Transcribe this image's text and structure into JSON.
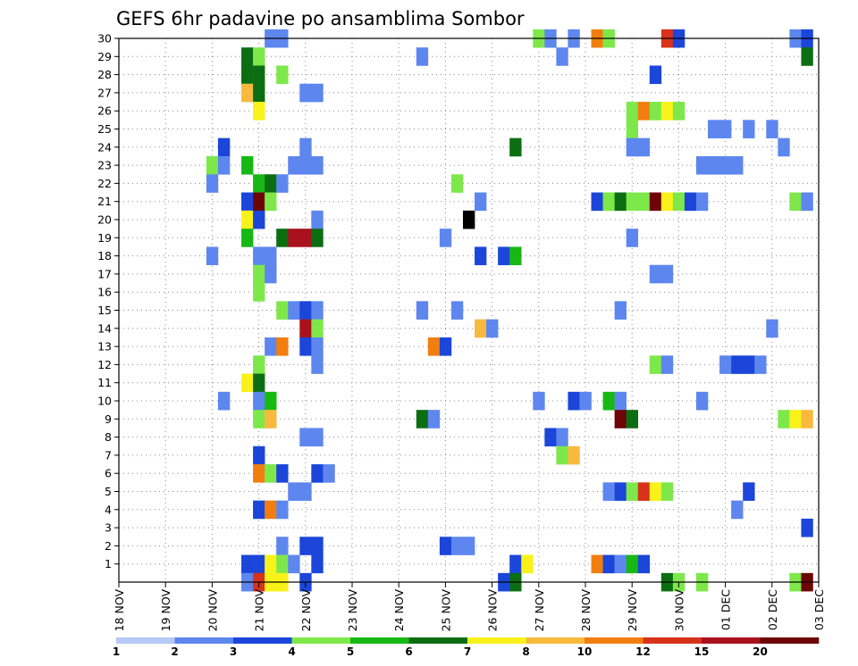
{
  "chart_data": {
    "type": "heatmap",
    "title": "GEFS 6hr padavine po ansamblima Sombor",
    "xlabel": "",
    "ylabel": "",
    "x_tick_labels": [
      "18 NOV",
      "19 NOV",
      "20 NOV",
      "21 NOV",
      "22 NOV",
      "23 NOV",
      "24 NOV",
      "25 NOV",
      "26 NOV",
      "27 NOV",
      "28 NOV",
      "29 NOV",
      "30 NOV",
      "01 DEC",
      "02 DEC",
      "03 DEC"
    ],
    "y_tick_labels": [
      "1",
      "2",
      "3",
      "4",
      "5",
      "6",
      "7",
      "8",
      "9",
      "10",
      "11",
      "12",
      "13",
      "14",
      "15",
      "16",
      "17",
      "18",
      "19",
      "20",
      "21",
      "22",
      "23",
      "24",
      "25",
      "26",
      "27",
      "28",
      "29",
      "30"
    ],
    "xlim": [
      0,
      60
    ],
    "ylim": [
      0,
      30
    ],
    "x_unit": "6-hour step from 18 NOV 00Z",
    "y_unit": "ensemble member",
    "grid": true,
    "colorbar": {
      "placement": "bottom",
      "labels": [
        "1",
        "2",
        "3",
        "4",
        "5",
        "6",
        "7",
        "8",
        "10",
        "12",
        "15",
        "20"
      ],
      "colors": [
        "#b5c9f7",
        "#5d86ef",
        "#1b46d9",
        "#7ee84a",
        "#17b813",
        "#0c6e12",
        "#f9f21a",
        "#f8ba3e",
        "#f27e0f",
        "#d8321b",
        "#a9121c",
        "#6d0506"
      ]
    },
    "cells": [
      [
        13,
        30,
        1
      ],
      [
        14,
        30,
        1
      ],
      [
        36,
        30,
        3
      ],
      [
        37,
        30,
        1
      ],
      [
        39,
        30,
        1
      ],
      [
        41,
        30,
        8
      ],
      [
        42,
        30,
        3
      ],
      [
        47,
        30,
        9
      ],
      [
        48,
        30,
        2
      ],
      [
        58,
        30,
        1
      ],
      [
        59,
        30,
        2
      ],
      [
        11,
        29,
        5
      ],
      [
        12,
        29,
        3
      ],
      [
        26,
        29,
        1
      ],
      [
        38,
        29,
        1
      ],
      [
        59,
        29,
        5
      ],
      [
        11,
        28,
        5
      ],
      [
        12,
        28,
        5
      ],
      [
        14,
        28,
        3
      ],
      [
        46,
        28,
        2
      ],
      [
        11,
        27,
        7
      ],
      [
        12,
        27,
        5
      ],
      [
        16,
        27,
        1
      ],
      [
        17,
        27,
        1
      ],
      [
        12,
        26,
        6
      ],
      [
        44,
        26,
        3
      ],
      [
        45,
        26,
        8
      ],
      [
        46,
        26,
        3
      ],
      [
        47,
        26,
        6
      ],
      [
        48,
        26,
        3
      ],
      [
        44,
        25,
        3
      ],
      [
        51,
        25,
        1
      ],
      [
        52,
        25,
        1
      ],
      [
        54,
        25,
        1
      ],
      [
        56,
        25,
        1
      ],
      [
        9,
        24,
        2
      ],
      [
        16,
        24,
        1
      ],
      [
        34,
        24,
        5
      ],
      [
        44,
        24,
        1
      ],
      [
        45,
        24,
        1
      ],
      [
        57,
        24,
        1
      ],
      [
        8,
        23,
        3
      ],
      [
        9,
        23,
        1
      ],
      [
        11,
        23,
        4
      ],
      [
        15,
        23,
        1
      ],
      [
        16,
        23,
        1
      ],
      [
        17,
        23,
        1
      ],
      [
        50,
        23,
        1
      ],
      [
        51,
        23,
        1
      ],
      [
        52,
        23,
        1
      ],
      [
        53,
        23,
        1
      ],
      [
        8,
        22,
        1
      ],
      [
        12,
        22,
        4
      ],
      [
        13,
        22,
        5
      ],
      [
        14,
        22,
        1
      ],
      [
        29,
        22,
        3
      ],
      [
        11,
        21,
        2
      ],
      [
        12,
        21,
        11
      ],
      [
        13,
        21,
        3
      ],
      [
        31,
        21,
        1
      ],
      [
        41,
        21,
        2
      ],
      [
        42,
        21,
        3
      ],
      [
        43,
        21,
        5
      ],
      [
        44,
        21,
        3
      ],
      [
        45,
        21,
        3
      ],
      [
        46,
        21,
        11
      ],
      [
        47,
        21,
        6
      ],
      [
        48,
        21,
        3
      ],
      [
        49,
        21,
        2
      ],
      [
        50,
        21,
        1
      ],
      [
        58,
        21,
        3
      ],
      [
        59,
        21,
        1
      ],
      [
        11,
        20,
        6
      ],
      [
        12,
        20,
        2
      ],
      [
        17,
        20,
        1
      ],
      [
        30,
        20,
        12
      ],
      [
        11,
        19,
        4
      ],
      [
        14,
        19,
        5
      ],
      [
        15,
        19,
        10
      ],
      [
        16,
        19,
        10
      ],
      [
        17,
        19,
        5
      ],
      [
        28,
        19,
        1
      ],
      [
        44,
        19,
        1
      ],
      [
        8,
        18,
        1
      ],
      [
        12,
        18,
        1
      ],
      [
        13,
        18,
        1
      ],
      [
        31,
        18,
        2
      ],
      [
        33,
        18,
        2
      ],
      [
        34,
        18,
        4
      ],
      [
        12,
        17,
        3
      ],
      [
        13,
        17,
        1
      ],
      [
        46,
        17,
        1
      ],
      [
        47,
        17,
        1
      ],
      [
        12,
        16,
        3
      ],
      [
        14,
        15,
        3
      ],
      [
        15,
        15,
        1
      ],
      [
        16,
        15,
        2
      ],
      [
        17,
        15,
        1
      ],
      [
        26,
        15,
        1
      ],
      [
        29,
        15,
        1
      ],
      [
        43,
        15,
        1
      ],
      [
        16,
        14,
        10
      ],
      [
        17,
        14,
        3
      ],
      [
        31,
        14,
        7
      ],
      [
        32,
        14,
        1
      ],
      [
        56,
        14,
        1
      ],
      [
        13,
        13,
        1
      ],
      [
        14,
        13,
        8
      ],
      [
        16,
        13,
        2
      ],
      [
        17,
        13,
        1
      ],
      [
        27,
        13,
        8
      ],
      [
        28,
        13,
        2
      ],
      [
        12,
        12,
        3
      ],
      [
        17,
        12,
        1
      ],
      [
        46,
        12,
        3
      ],
      [
        47,
        12,
        1
      ],
      [
        52,
        12,
        1
      ],
      [
        53,
        12,
        2
      ],
      [
        54,
        12,
        2
      ],
      [
        55,
        12,
        1
      ],
      [
        11,
        11,
        6
      ],
      [
        12,
        11,
        5
      ],
      [
        9,
        10,
        1
      ],
      [
        12,
        10,
        1
      ],
      [
        13,
        10,
        4
      ],
      [
        36,
        10,
        1
      ],
      [
        39,
        10,
        2
      ],
      [
        40,
        10,
        1
      ],
      [
        42,
        10,
        4
      ],
      [
        43,
        10,
        1
      ],
      [
        50,
        10,
        1
      ],
      [
        12,
        9,
        3
      ],
      [
        13,
        9,
        7
      ],
      [
        26,
        9,
        5
      ],
      [
        27,
        9,
        1
      ],
      [
        43,
        9,
        11
      ],
      [
        44,
        9,
        5
      ],
      [
        57,
        9,
        3
      ],
      [
        58,
        9,
        6
      ],
      [
        59,
        9,
        7
      ],
      [
        16,
        8,
        1
      ],
      [
        17,
        8,
        1
      ],
      [
        37,
        8,
        2
      ],
      [
        38,
        8,
        1
      ],
      [
        12,
        7,
        2
      ],
      [
        38,
        7,
        3
      ],
      [
        39,
        7,
        7
      ],
      [
        12,
        6,
        8
      ],
      [
        13,
        6,
        3
      ],
      [
        14,
        6,
        2
      ],
      [
        17,
        6,
        2
      ],
      [
        18,
        6,
        1
      ],
      [
        15,
        5,
        1
      ],
      [
        16,
        5,
        1
      ],
      [
        42,
        5,
        1
      ],
      [
        43,
        5,
        2
      ],
      [
        44,
        5,
        3
      ],
      [
        45,
        5,
        9
      ],
      [
        46,
        5,
        6
      ],
      [
        47,
        5,
        3
      ],
      [
        54,
        5,
        2
      ],
      [
        12,
        4,
        2
      ],
      [
        13,
        4,
        8
      ],
      [
        14,
        4,
        1
      ],
      [
        53,
        4,
        1
      ],
      [
        59,
        3,
        2
      ],
      [
        14,
        2,
        1
      ],
      [
        16,
        2,
        2
      ],
      [
        17,
        2,
        2
      ],
      [
        28,
        2,
        2
      ],
      [
        29,
        2,
        1
      ],
      [
        30,
        2,
        1
      ],
      [
        11,
        1,
        2
      ],
      [
        12,
        1,
        2
      ],
      [
        13,
        1,
        6
      ],
      [
        14,
        1,
        3
      ],
      [
        15,
        1,
        1
      ],
      [
        17,
        1,
        2
      ],
      [
        34,
        1,
        2
      ],
      [
        35,
        1,
        6
      ],
      [
        41,
        1,
        8
      ],
      [
        42,
        1,
        2
      ],
      [
        43,
        1,
        1
      ],
      [
        44,
        1,
        4
      ],
      [
        45,
        1,
        2
      ],
      [
        11,
        0,
        1
      ],
      [
        12,
        0,
        9
      ],
      [
        13,
        0,
        6
      ],
      [
        14,
        0,
        6
      ],
      [
        16,
        0,
        2
      ],
      [
        33,
        0,
        2
      ],
      [
        34,
        0,
        5
      ],
      [
        47,
        0,
        5
      ],
      [
        48,
        0,
        3
      ],
      [
        50,
        0,
        3
      ],
      [
        58,
        0,
        3
      ],
      [
        59,
        0,
        11
      ]
    ]
  }
}
